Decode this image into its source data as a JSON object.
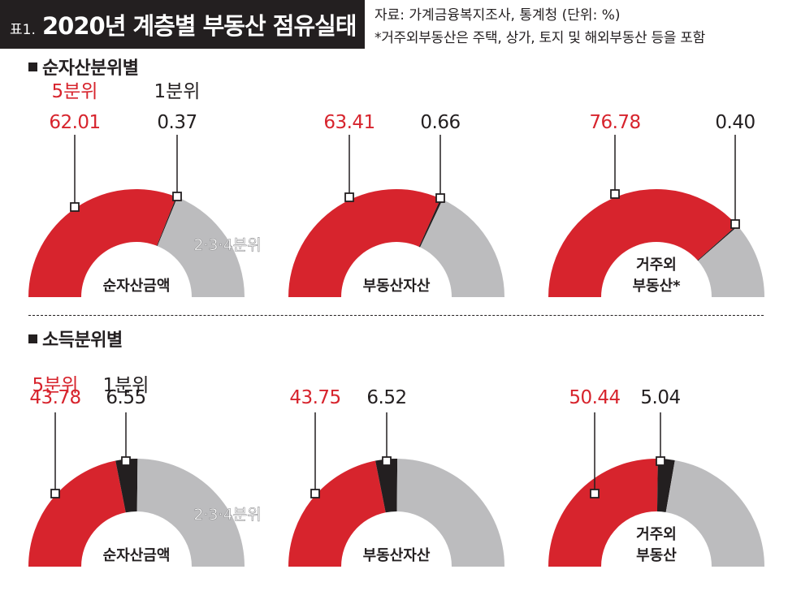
{
  "header": {
    "prefix": "표1.",
    "title": "2020년 계층별 부동산 점유실태",
    "source": "자료: 가계금융복지조사, 통계청   (단위: %)",
    "note": "*거주외부동산은 주택, 상가, 토지 및 해외부동산 등을 포함"
  },
  "colors": {
    "top": "#d7242d",
    "bottom": "#231f20",
    "middle": "#bcbcbe"
  },
  "sections": [
    {
      "title": "순자산분위별"
    },
    {
      "title": "소득분위별"
    }
  ],
  "chart_data": [
    {
      "type": "semi-donut",
      "section": "순자산분위별",
      "center_label": [
        "순자산금액"
      ],
      "top_label": "5분위",
      "top_value": 62.01,
      "bottom_label": "1분위",
      "bottom_value": 0.37,
      "middle_label": "2·3·4분위",
      "middle_value": 37.62
    },
    {
      "type": "semi-donut",
      "section": "순자산분위별",
      "center_label": [
        "부동산자산"
      ],
      "top_label": "",
      "top_value": 63.41,
      "bottom_label": "",
      "bottom_value": 0.66,
      "middle_label": "",
      "middle_value": 35.93
    },
    {
      "type": "semi-donut",
      "section": "순자산분위별",
      "center_label": [
        "거주외",
        "부동산*"
      ],
      "top_label": "",
      "top_value": 76.78,
      "bottom_label": "",
      "bottom_value": 0.4,
      "middle_label": "",
      "middle_value": 22.82
    },
    {
      "type": "semi-donut",
      "section": "소득분위별",
      "center_label": [
        "순자산금액"
      ],
      "top_label": "5분위",
      "top_value": 43.78,
      "bottom_label": "1분위",
      "bottom_value": 6.55,
      "middle_label": "2·3·4분위",
      "middle_value": 49.67
    },
    {
      "type": "semi-donut",
      "section": "소득분위별",
      "center_label": [
        "부동산자산"
      ],
      "top_label": "",
      "top_value": 43.75,
      "bottom_label": "",
      "bottom_value": 6.52,
      "middle_label": "",
      "middle_value": 49.73
    },
    {
      "type": "semi-donut",
      "section": "소득분위별",
      "center_label": [
        "거주외",
        "부동산"
      ],
      "top_label": "",
      "top_value": 50.44,
      "bottom_label": "",
      "bottom_value": 5.04,
      "middle_label": "",
      "middle_value": 44.52
    }
  ]
}
